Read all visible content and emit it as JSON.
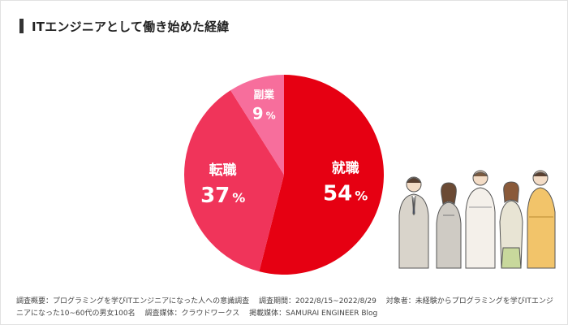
{
  "title": "ITエンジニアとして働き始めた経緯",
  "chart_data": {
    "type": "pie",
    "title": "ITエンジニアとして働き始めた経緯",
    "slices": [
      {
        "label": "就職",
        "value": 54,
        "unit": "%",
        "color": "#e60012"
      },
      {
        "label": "転職",
        "value": 37,
        "unit": "%",
        "color": "#f0345a"
      },
      {
        "label": "副業",
        "value": 9,
        "unit": "%",
        "color": "#f76e9c"
      }
    ],
    "start_angle_deg": 0,
    "direction": "clockwise"
  },
  "footnote": {
    "survey_overview": "調査概要：プログラミングを学びITエンジニアになった人への意識調査",
    "survey_period": "調査期間：2022/8/15~2022/8/29",
    "target": "対象者：未経験からプログラミングを学びITエンジニアになった10~60代の男女100名",
    "media": "調査媒体：クラウドワークス",
    "published": "掲載媒体：SAMURAI ENGINEER Blog"
  }
}
